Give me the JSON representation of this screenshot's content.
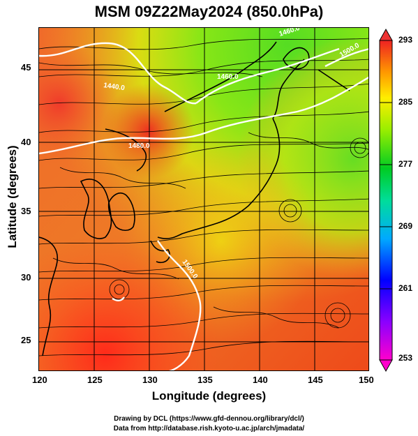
{
  "title": "MSM 09Z22May2024 (850.0hPa)",
  "xaxis": {
    "label": "Longitude (degrees)",
    "ticks": [
      "120",
      "125",
      "130",
      "135",
      "140",
      "145",
      "150"
    ],
    "range": [
      120,
      150
    ]
  },
  "yaxis": {
    "label": "Latitude  (degrees)",
    "ticks": [
      "45",
      "40",
      "35",
      "30",
      "25"
    ],
    "range": [
      22.4,
      47.6
    ]
  },
  "colorbar": {
    "labels": [
      "293",
      "285",
      "277",
      "269",
      "261",
      "253"
    ],
    "range": [
      253,
      293
    ],
    "colors": [
      "#ff00aa",
      "#8800ff",
      "#0000ff",
      "#00aaff",
      "#00ddaa",
      "#00cc33",
      "#88ee00",
      "#ffff00",
      "#ff9900",
      "#ff3300",
      "#ee1111"
    ]
  },
  "contours": [
    {
      "label": "1440.0"
    },
    {
      "label": "1460.0"
    },
    {
      "label": "1480.0"
    },
    {
      "label": "1460.0"
    },
    {
      "label": "1500.0"
    },
    {
      "label": "1500.0"
    }
  ],
  "credits": {
    "line1": "Drawing by DCL (https://www.gfd-dennou.org/library/dcl/)",
    "line2": "Data from http://database.rish.kyoto-u.ac.jp/arch/jmadata/"
  }
}
